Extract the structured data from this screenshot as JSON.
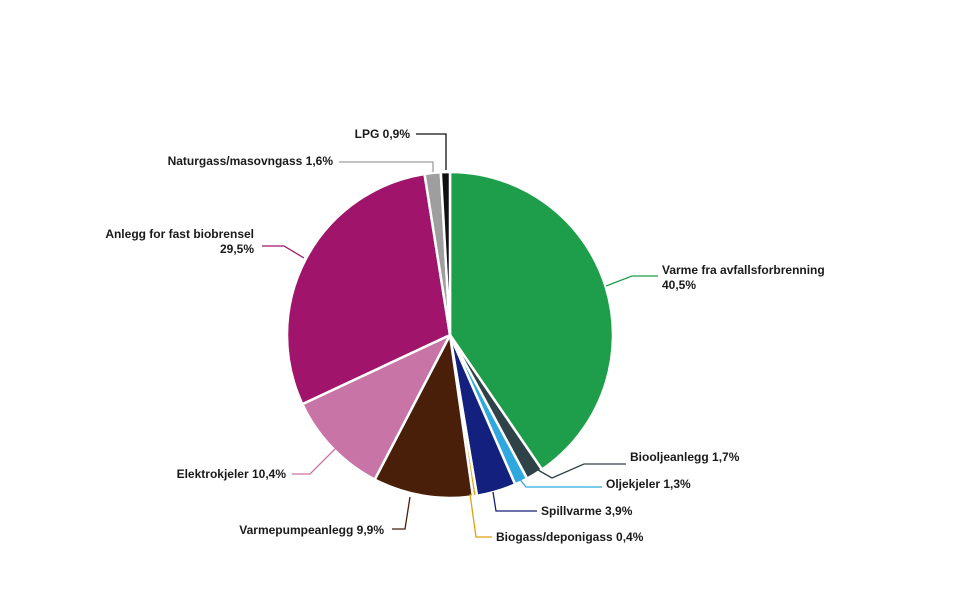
{
  "chart_data": {
    "type": "pie",
    "title": "",
    "legend": "none",
    "slices": [
      {
        "label": "Varme fra avfallsforbrenning",
        "value_text": "40,5%",
        "value": 40.5,
        "color": "#1e9e4a"
      },
      {
        "label": "Biooljeanlegg",
        "value_text": "1,7%",
        "value": 1.7,
        "color": "#2f4248"
      },
      {
        "label": "Oljekjeler",
        "value_text": "1,3%",
        "value": 1.3,
        "color": "#2fa8e0"
      },
      {
        "label": "Spillvarme",
        "value_text": "3,9%",
        "value": 3.9,
        "color": "#13207d"
      },
      {
        "label": "Biogass/deponigass",
        "value_text": "0,4%",
        "value": 0.4,
        "color": "#e0a10f"
      },
      {
        "label": "Varmepumpeanlegg",
        "value_text": "9,9%",
        "value": 9.9,
        "color": "#4a1f0a"
      },
      {
        "label": "Elektrokjeler",
        "value_text": "10,4%",
        "value": 10.4,
        "color": "#c874a6"
      },
      {
        "label": "Anlegg for fast biobrensel",
        "value_text": "29,5%",
        "value": 29.5,
        "color": "#a0156b"
      },
      {
        "label": "Naturgass/masovngass",
        "value_text": "1,6%",
        "value": 1.6,
        "color": "#9e9e9e"
      },
      {
        "label": "LPG",
        "value_text": "0,9%",
        "value": 0.9,
        "color": "#111111"
      }
    ]
  }
}
